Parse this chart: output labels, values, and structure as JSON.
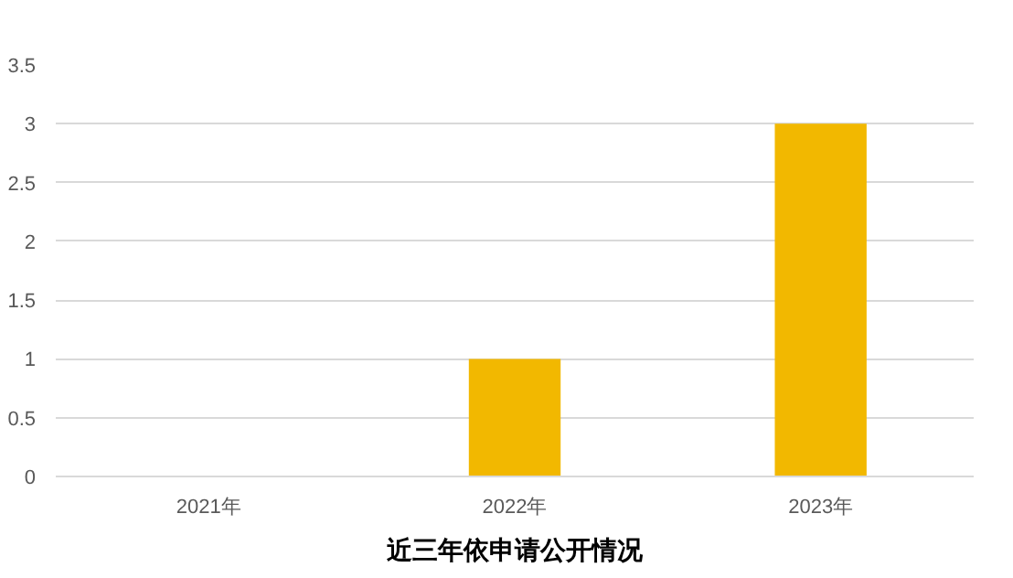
{
  "chart_data": {
    "type": "bar",
    "title": "近三年依申请公开情况",
    "categories": [
      "2021年",
      "2022年",
      "2023年"
    ],
    "values": [
      0,
      1,
      3
    ],
    "color": "#f2b800",
    "ylim": [
      0,
      3.5
    ],
    "yticks": [
      0,
      0.5,
      1,
      1.5,
      2,
      2.5,
      3,
      3.5
    ],
    "grid": "y"
  }
}
